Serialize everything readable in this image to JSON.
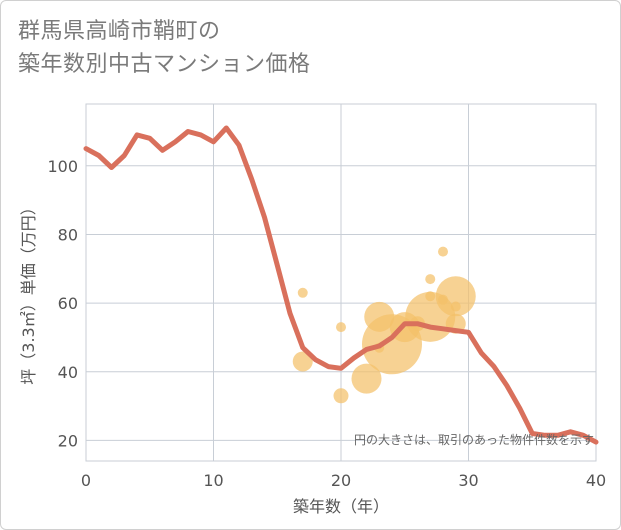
{
  "title_line1": "群馬県高崎市鞘町の",
  "title_line2": "築年数別中古マンション価格",
  "chart_data": {
    "type": "scatter+line",
    "xlabel": "築年数（年）",
    "ylabel": "坪（3.3㎡）単価（万円）",
    "xlim": [
      0,
      40
    ],
    "ylim": [
      14,
      118
    ],
    "xticks": [
      0,
      10,
      20,
      30,
      40
    ],
    "yticks": [
      20,
      40,
      60,
      80,
      100
    ],
    "grid": true,
    "note": "円の大きさは、取引のあった物件件数を示す",
    "colors": {
      "line": "#d9705c",
      "bubble": "#f4c06a"
    },
    "line": {
      "x": [
        0,
        1,
        2,
        3,
        4,
        5,
        6,
        7,
        8,
        9,
        10,
        11,
        12,
        13,
        14,
        15,
        16,
        17,
        18,
        19,
        20,
        21,
        22,
        23,
        24,
        25,
        26,
        27,
        28,
        29,
        30,
        31,
        32,
        33,
        34,
        35,
        36,
        37,
        38,
        39,
        40
      ],
      "y": [
        105,
        103,
        99.5,
        103,
        109,
        108,
        104.5,
        107,
        110,
        109,
        107,
        111,
        106,
        96,
        85,
        71,
        57,
        47,
        43.5,
        41.5,
        41,
        44,
        46.5,
        47.5,
        50,
        54,
        54,
        53,
        52.5,
        52,
        51.5,
        45.5,
        41.5,
        36,
        29.5,
        22,
        21.5,
        21.5,
        22.5,
        21.5,
        19.5
      ]
    },
    "bubbles": [
      {
        "x": 17,
        "y": 63,
        "size": 1
      },
      {
        "x": 17,
        "y": 43,
        "size": 2
      },
      {
        "x": 20,
        "y": 53,
        "size": 1
      },
      {
        "x": 20,
        "y": 33,
        "size": 1.5
      },
      {
        "x": 22,
        "y": 38,
        "size": 3
      },
      {
        "x": 23,
        "y": 56,
        "size": 3
      },
      {
        "x": 23,
        "y": 47,
        "size": 1
      },
      {
        "x": 24,
        "y": 48,
        "size": 6
      },
      {
        "x": 25,
        "y": 53,
        "size": 3
      },
      {
        "x": 26,
        "y": 54,
        "size": 1.5
      },
      {
        "x": 27,
        "y": 67,
        "size": 1
      },
      {
        "x": 27,
        "y": 62,
        "size": 1
      },
      {
        "x": 27,
        "y": 56,
        "size": 5
      },
      {
        "x": 28,
        "y": 75,
        "size": 1
      },
      {
        "x": 28,
        "y": 61,
        "size": 1
      },
      {
        "x": 29,
        "y": 62,
        "size": 4
      },
      {
        "x": 29,
        "y": 59,
        "size": 1
      },
      {
        "x": 29,
        "y": 54,
        "size": 2
      }
    ]
  }
}
